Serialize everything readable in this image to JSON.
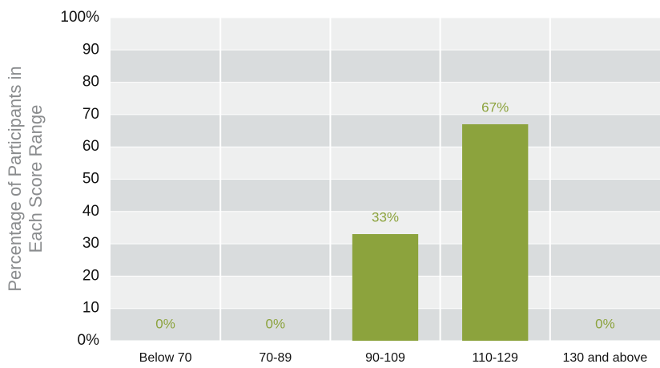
{
  "chart_data": {
    "type": "bar",
    "y_label": [
      "Percentage of Participants in",
      "Each Score Range"
    ],
    "categories": [
      "Below 70",
      "70-89",
      "90-109",
      "110-129",
      "130 and above"
    ],
    "values": [
      0,
      0,
      33,
      67,
      0
    ],
    "value_labels": [
      "0%",
      "0%",
      "33%",
      "67%",
      "0%"
    ],
    "color": "#8ca33d",
    "ylim": [
      0,
      100
    ],
    "yticks": [
      {
        "value": 0,
        "label": "0%"
      },
      10,
      20,
      30,
      40,
      50,
      60,
      70,
      80,
      90,
      {
        "value": 100,
        "label": "100%"
      }
    ],
    "grid": true
  }
}
